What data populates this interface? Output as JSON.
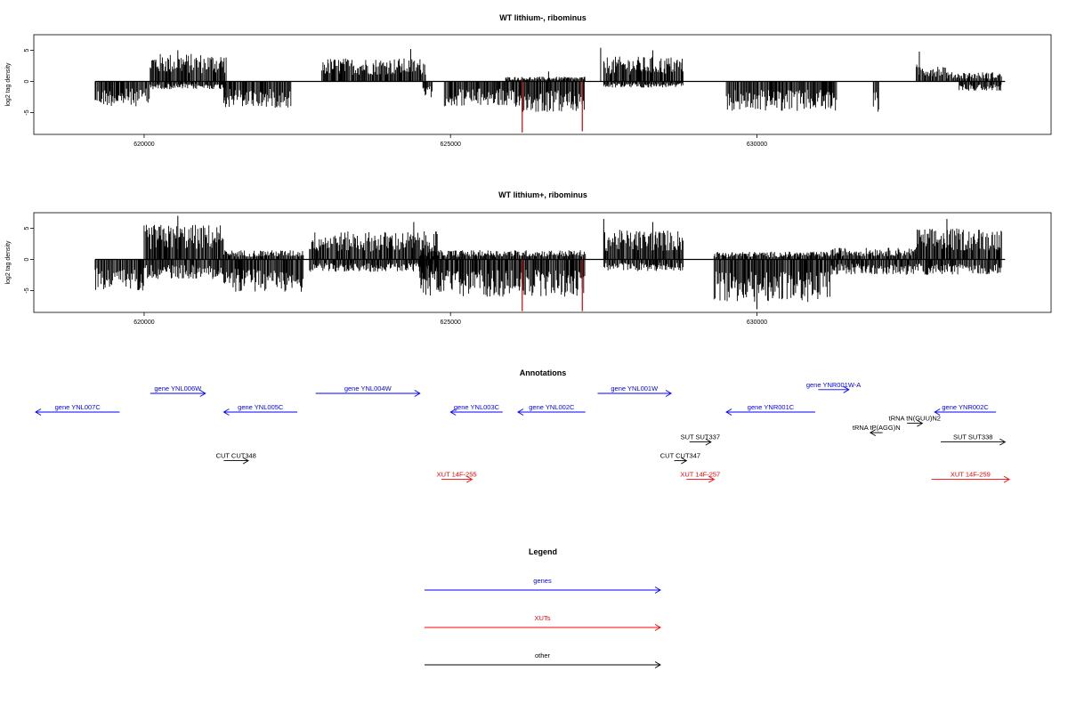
{
  "chart_data": [
    {
      "type": "bar",
      "title": "WT lithium-, ribominus",
      "ylabel": "log2 tag density",
      "xlim": [
        618200,
        634800
      ],
      "ylim": [
        -8.5,
        7.5
      ],
      "x_ticks": [
        620000,
        625000,
        630000
      ],
      "y_ticks": [
        -5,
        0,
        5
      ],
      "density_segments": [
        {
          "from": 619200,
          "to": 620100,
          "strand": "-",
          "level": 3.2
        },
        {
          "from": 620100,
          "to": 621350,
          "strand": "+",
          "level": 3.6
        },
        {
          "from": 620100,
          "to": 621350,
          "strand": "-",
          "level": 1.0
        },
        {
          "from": 621300,
          "to": 622400,
          "strand": "-",
          "level": 3.4
        },
        {
          "from": 622900,
          "to": 624600,
          "strand": "+",
          "level": 3.0
        },
        {
          "from": 624550,
          "to": 624700,
          "strand": "-",
          "level": 2.2
        },
        {
          "from": 624900,
          "to": 625900,
          "strand": "-",
          "level": 3.2
        },
        {
          "from": 625900,
          "to": 627200,
          "strand": "-",
          "level": 4.0
        },
        {
          "from": 625900,
          "to": 627200,
          "strand": "+",
          "level": 0.6
        },
        {
          "from": 627500,
          "to": 628800,
          "strand": "+",
          "level": 3.2
        },
        {
          "from": 627500,
          "to": 628800,
          "strand": "-",
          "level": 0.8
        },
        {
          "from": 629500,
          "to": 631300,
          "strand": "-",
          "level": 3.8
        },
        {
          "from": 631900,
          "to": 632000,
          "strand": "-",
          "level": 4.0
        },
        {
          "from": 632600,
          "to": 633100,
          "strand": "+",
          "level": 2.2
        },
        {
          "from": 633100,
          "to": 634000,
          "strand": "+",
          "level": 1.2
        },
        {
          "from": 633300,
          "to": 634000,
          "strand": "-",
          "level": 1.2
        }
      ],
      "peaks": [
        {
          "x": 620550,
          "y": 5.0
        },
        {
          "x": 624350,
          "y": 5.2
        },
        {
          "x": 626600,
          "y": 1.6
        },
        {
          "x": 627450,
          "y": 5.4
        },
        {
          "x": 628300,
          "y": 5.0
        },
        {
          "x": 632650,
          "y": 4.8
        }
      ],
      "highlight_spikes": [
        {
          "x": 626170,
          "y": -8.2,
          "color": "#cc0000"
        },
        {
          "x": 627150,
          "y": -8.0,
          "color": "#cc0000"
        }
      ]
    },
    {
      "type": "bar",
      "title": "WT lithium+, ribominus",
      "ylabel": "log2 tag density",
      "xlim": [
        618200,
        634800
      ],
      "ylim": [
        -8.5,
        7.5
      ],
      "x_ticks": [
        620000,
        625000,
        630000
      ],
      "y_ticks": [
        -5,
        0,
        5
      ],
      "density_segments": [
        {
          "from": 619200,
          "to": 620000,
          "strand": "-",
          "level": 4.0
        },
        {
          "from": 620000,
          "to": 621300,
          "strand": "+",
          "level": 4.5
        },
        {
          "from": 620000,
          "to": 621300,
          "strand": "-",
          "level": 2.5
        },
        {
          "from": 621300,
          "to": 622600,
          "strand": "-",
          "level": 4.2
        },
        {
          "from": 621300,
          "to": 622600,
          "strand": "+",
          "level": 1.2
        },
        {
          "from": 622700,
          "to": 624800,
          "strand": "+",
          "level": 3.6
        },
        {
          "from": 622700,
          "to": 624800,
          "strand": "-",
          "level": 1.6
        },
        {
          "from": 624500,
          "to": 627200,
          "strand": "-",
          "level": 4.8
        },
        {
          "from": 624500,
          "to": 627200,
          "strand": "+",
          "level": 1.2
        },
        {
          "from": 627500,
          "to": 628800,
          "strand": "+",
          "level": 3.8
        },
        {
          "from": 627500,
          "to": 628800,
          "strand": "-",
          "level": 1.5
        },
        {
          "from": 629300,
          "to": 631200,
          "strand": "-",
          "level": 5.5
        },
        {
          "from": 629300,
          "to": 631200,
          "strand": "+",
          "level": 1.0
        },
        {
          "from": 631200,
          "to": 632600,
          "strand": "+",
          "level": 1.5
        },
        {
          "from": 631200,
          "to": 632600,
          "strand": "-",
          "level": 2.0
        },
        {
          "from": 632600,
          "to": 634000,
          "strand": "+",
          "level": 4.0
        },
        {
          "from": 632600,
          "to": 634000,
          "strand": "-",
          "level": 2.0
        }
      ],
      "peaks": [
        {
          "x": 620550,
          "y": 7.0
        },
        {
          "x": 624400,
          "y": 6.0
        },
        {
          "x": 627500,
          "y": 6.5
        },
        {
          "x": 628300,
          "y": 6.0
        },
        {
          "x": 633100,
          "y": 6.5
        },
        {
          "x": 630000,
          "y": -8.0
        }
      ],
      "highlight_spikes": [
        {
          "x": 626170,
          "y": -8.3,
          "color": "#cc0000"
        },
        {
          "x": 627150,
          "y": -8.3,
          "color": "#cc0000"
        }
      ]
    }
  ],
  "annotations": {
    "title": "Annotations",
    "features": [
      {
        "label": "gene YNL007C",
        "type": "genes",
        "strand": "-",
        "from": 618100,
        "to": 619600,
        "row": 0
      },
      {
        "label": "gene YNL006W",
        "type": "genes",
        "strand": "+",
        "from": 620100,
        "to": 621000,
        "row": -1
      },
      {
        "label": "gene YNL005C",
        "type": "genes",
        "strand": "-",
        "from": 621300,
        "to": 622500,
        "row": 0
      },
      {
        "label": "gene YNL004W",
        "type": "genes",
        "strand": "+",
        "from": 622800,
        "to": 624500,
        "row": -1
      },
      {
        "label": "gene YNL003C",
        "type": "genes",
        "strand": "-",
        "from": 625000,
        "to": 625850,
        "row": 0
      },
      {
        "label": "gene YNL002C",
        "type": "genes",
        "strand": "-",
        "from": 626100,
        "to": 627200,
        "row": 0
      },
      {
        "label": "gene YNL001W",
        "type": "genes",
        "strand": "+",
        "from": 627400,
        "to": 628600,
        "row": -1
      },
      {
        "label": "gene YNR001W-A",
        "type": "genes",
        "strand": "+",
        "from": 631000,
        "to": 631500,
        "row": -1.2
      },
      {
        "label": "gene YNR001C",
        "type": "genes",
        "strand": "-",
        "from": 629500,
        "to": 630950,
        "row": 0
      },
      {
        "label": "gene YNR002C",
        "type": "genes",
        "strand": "-",
        "from": 632900,
        "to": 633900,
        "row": 0
      },
      {
        "label": "tRNA tN(GUU)N2",
        "type": "other",
        "strand": "+",
        "from": 632450,
        "to": 632700,
        "row": 0.6
      },
      {
        "label": "tRNA tP(AGG)N",
        "type": "other",
        "strand": "-",
        "from": 631850,
        "to": 632050,
        "row": 1.1
      },
      {
        "label": "SUT SUT337",
        "type": "other",
        "strand": "+",
        "from": 628900,
        "to": 629250,
        "row": 1.6
      },
      {
        "label": "SUT SUT338",
        "type": "other",
        "strand": "+",
        "from": 633000,
        "to": 634050,
        "row": 1.6
      },
      {
        "label": "CUT CUT348",
        "type": "other",
        "strand": "+",
        "from": 621300,
        "to": 621700,
        "row": 2.6
      },
      {
        "label": "CUT CUT347",
        "type": "other",
        "strand": "+",
        "from": 628650,
        "to": 628850,
        "row": 2.6
      },
      {
        "label": "XUT 14F-255",
        "type": "XUTs",
        "strand": "+",
        "from": 624850,
        "to": 625350,
        "row": 3.6
      },
      {
        "label": "XUT 14F-257",
        "type": "XUTs",
        "strand": "+",
        "from": 628850,
        "to": 629300,
        "row": 3.6
      },
      {
        "label": "XUT 14F-259",
        "type": "XUTs",
        "strand": "+",
        "from": 632850,
        "to": 634150,
        "row": 3.6
      }
    ]
  },
  "legend": {
    "title": "Legend",
    "items": [
      {
        "label": "genes",
        "color": "#0000ff"
      },
      {
        "label": "XUTs",
        "color": "#ff0000"
      },
      {
        "label": "other",
        "color": "#000000"
      }
    ]
  },
  "colors": {
    "genes": "#0000ff",
    "XUTs": "#ff0000",
    "other": "#000000",
    "highlight": "#cc0000"
  }
}
